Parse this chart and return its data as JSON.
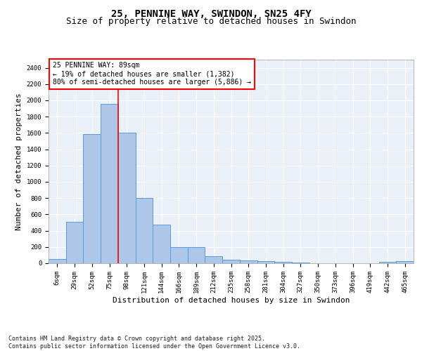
{
  "title1": "25, PENNINE WAY, SWINDON, SN25 4FY",
  "title2": "Size of property relative to detached houses in Swindon",
  "xlabel": "Distribution of detached houses by size in Swindon",
  "ylabel": "Number of detached properties",
  "categories": [
    "6sqm",
    "29sqm",
    "52sqm",
    "75sqm",
    "98sqm",
    "121sqm",
    "144sqm",
    "166sqm",
    "189sqm",
    "212sqm",
    "235sqm",
    "258sqm",
    "281sqm",
    "304sqm",
    "327sqm",
    "350sqm",
    "373sqm",
    "396sqm",
    "419sqm",
    "442sqm",
    "465sqm"
  ],
  "values": [
    55,
    510,
    1590,
    1960,
    1605,
    805,
    475,
    200,
    195,
    90,
    42,
    35,
    28,
    15,
    10,
    0,
    0,
    0,
    0,
    18,
    28
  ],
  "bar_color": "#aec6e8",
  "bar_edge_color": "#5b9bd5",
  "vline_color": "red",
  "vline_pos": 3.5,
  "annotation_text": "25 PENNINE WAY: 89sqm\n← 19% of detached houses are smaller (1,382)\n80% of semi-detached houses are larger (5,886) →",
  "ylim": [
    0,
    2500
  ],
  "yticks": [
    0,
    200,
    400,
    600,
    800,
    1000,
    1200,
    1400,
    1600,
    1800,
    2000,
    2200,
    2400
  ],
  "background_color": "#eaf0f8",
  "grid_color": "white",
  "footer": "Contains HM Land Registry data © Crown copyright and database right 2025.\nContains public sector information licensed under the Open Government Licence v3.0.",
  "title1_fontsize": 10,
  "title2_fontsize": 9,
  "tick_fontsize": 6.5,
  "ylabel_fontsize": 8,
  "xlabel_fontsize": 8,
  "annotation_fontsize": 7,
  "footer_fontsize": 6
}
